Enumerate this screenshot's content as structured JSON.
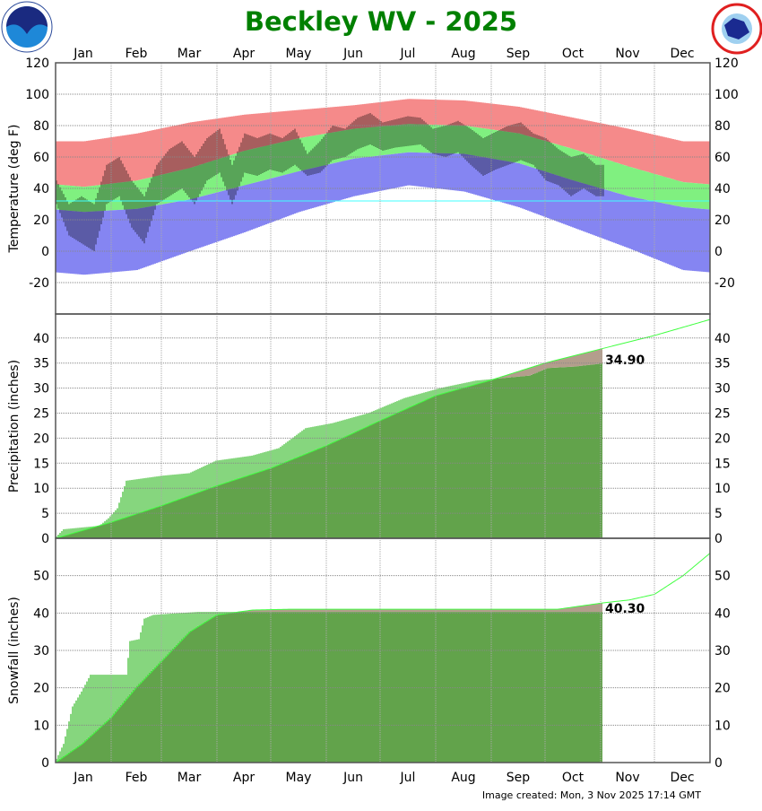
{
  "title": "Beckley WV - 2025",
  "footer": "Image created: Mon, 3 Nov 2025 17:14 GMT",
  "logos": {
    "left": "NOAA",
    "right": "NATIONAL WEATHER SERVICE"
  },
  "months": [
    "Jan",
    "Feb",
    "Mar",
    "Apr",
    "May",
    "Jun",
    "Jul",
    "Aug",
    "Sep",
    "Oct",
    "Nov",
    "Dec"
  ],
  "colors": {
    "record_high": "#f58a8a",
    "normal_range": "#80f080",
    "record_low": "#8585f2",
    "observed": "#000000",
    "freezing_line": "#40ffff",
    "precip_normal_fill": "#62a34b",
    "precip_above": "#86d67e",
    "precip_below": "#b39e8c",
    "normal_line": "#40ff40",
    "title": "#008000"
  },
  "chart_data": [
    {
      "type": "bar",
      "panel": "temperature",
      "ylabel": "Temperature (deg F)",
      "ylim": [
        -40,
        120
      ],
      "yticks": [
        "120",
        "100",
        "80",
        "60",
        "40",
        "20",
        "0",
        "-20"
      ],
      "grid": true,
      "freezing_line": 32,
      "monthly_mid": {
        "record_high": [
          70,
          75,
          82,
          87,
          90,
          93,
          97,
          96,
          92,
          85,
          78,
          70
        ],
        "normal_high": [
          41,
          45,
          53,
          64,
          72,
          78,
          81,
          80,
          75,
          65,
          54,
          44
        ],
        "normal_low": [
          25,
          27,
          33,
          42,
          51,
          59,
          63,
          62,
          56,
          45,
          35,
          28
        ],
        "record_low": [
          -15,
          -12,
          0,
          12,
          25,
          35,
          42,
          38,
          28,
          15,
          2,
          -12
        ]
      },
      "observed_weekly": {
        "start_day_of_year": [
          1,
          8,
          15,
          22,
          29,
          36,
          43,
          50,
          57,
          64,
          71,
          78,
          85,
          92,
          99,
          106,
          113,
          120,
          127,
          134,
          141,
          148,
          155,
          162,
          169,
          176,
          183,
          190,
          197,
          204,
          211,
          218,
          225,
          232,
          239,
          246,
          253,
          260,
          267,
          274,
          281,
          288,
          295,
          302
        ],
        "high": [
          45,
          30,
          35,
          30,
          55,
          60,
          45,
          35,
          55,
          65,
          70,
          60,
          72,
          78,
          55,
          75,
          72,
          75,
          72,
          78,
          62,
          70,
          80,
          78,
          85,
          88,
          82,
          84,
          86,
          85,
          78,
          80,
          83,
          78,
          72,
          76,
          80,
          82,
          75,
          72,
          65,
          60,
          62,
          55
        ],
        "low": [
          30,
          10,
          5,
          0,
          30,
          35,
          15,
          5,
          30,
          35,
          40,
          30,
          45,
          50,
          30,
          50,
          48,
          52,
          50,
          55,
          48,
          50,
          58,
          60,
          65,
          68,
          64,
          66,
          67,
          68,
          62,
          60,
          63,
          55,
          48,
          52,
          55,
          58,
          55,
          45,
          42,
          35,
          40,
          35
        ]
      }
    },
    {
      "type": "area",
      "panel": "precipitation",
      "ylabel": "Precipitation (inches)",
      "ylim": [
        0,
        44.8
      ],
      "yticks": [
        "40",
        "35",
        "30",
        "25",
        "20",
        "15",
        "10",
        "5",
        "0"
      ],
      "grid": true,
      "end_label": "34.90",
      "observed_cumulative": {
        "day": [
          0,
          5,
          25,
          30,
          35,
          40,
          60,
          75,
          90,
          110,
          125,
          140,
          155,
          175,
          195,
          215,
          235,
          250,
          265,
          275,
          290,
          305
        ],
        "value": [
          0,
          1.8,
          2.5,
          4,
          6,
          11.5,
          12.5,
          13,
          15.5,
          16.5,
          18,
          22,
          23,
          25,
          28,
          30,
          31.5,
          32,
          32.5,
          34,
          34.3,
          34.9
        ]
      },
      "normal_cumulative": {
        "day": [
          0,
          31,
          59,
          90,
          120,
          151,
          181,
          212,
          243,
          273,
          304,
          334,
          365
        ],
        "value": [
          0,
          3.2,
          6.5,
          10.5,
          14,
          18.5,
          23.5,
          28.5,
          31.6,
          35,
          37.8,
          40.5,
          43.7
        ]
      }
    },
    {
      "type": "area",
      "panel": "snowfall",
      "ylabel": "Snowfall (inches)",
      "ylim": [
        0,
        60
      ],
      "yticks": [
        "50",
        "40",
        "30",
        "20",
        "10",
        "0"
      ],
      "grid": true,
      "end_label": "40.30",
      "observed_cumulative": {
        "day": [
          0,
          5,
          10,
          15,
          20,
          40,
          42,
          47,
          50,
          55,
          70,
          80,
          305
        ],
        "value": [
          0,
          5,
          15,
          19,
          23.5,
          23.5,
          32.5,
          33,
          38.5,
          39.5,
          40,
          40.3,
          40.3
        ]
      },
      "normal_cumulative": {
        "day": [
          0,
          15,
          31,
          45,
          59,
          75,
          90,
          110,
          130,
          280,
          305,
          320,
          334,
          350,
          365
        ],
        "value": [
          0,
          5,
          12,
          20,
          27,
          35,
          39.5,
          40.8,
          41,
          41,
          42.7,
          43.5,
          45,
          50,
          56
        ]
      }
    }
  ]
}
